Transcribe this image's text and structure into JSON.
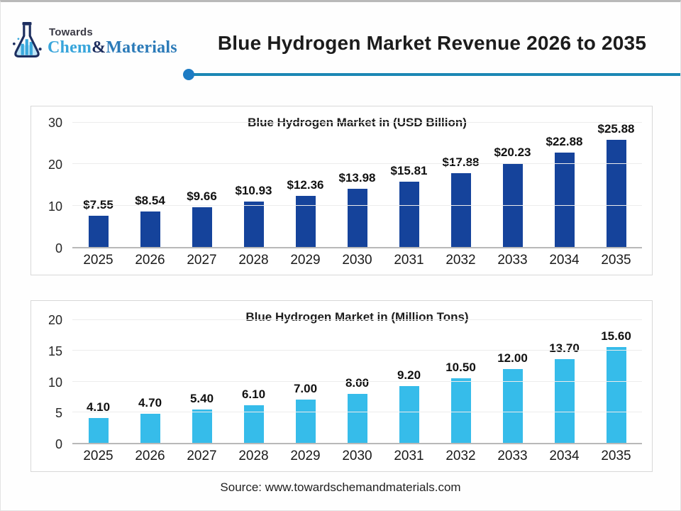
{
  "header": {
    "logo": {
      "icon": "flask-chart-icon",
      "brand_top": "Towards",
      "brand_chem": "Chem",
      "brand_amp": "&",
      "brand_materials": "Materials"
    },
    "title": "Blue Hydrogen Market Revenue 2026 to 2035"
  },
  "footer": {
    "source": "Source: www.towardschemandmaterials.com"
  },
  "colors": {
    "navy_bar": "#15439b",
    "cyan_bar": "#36bcea",
    "divider_line": "#1b87b4",
    "divider_dot": "#1d7cc4",
    "logo_chem": "#38a5db",
    "logo_materials": "#2b7ab8",
    "logo_navy": "#1d2e5f"
  },
  "chart_data": [
    {
      "type": "bar",
      "title": "Blue Hydrogen Market in (USD Billion)",
      "categories": [
        "2025",
        "2026",
        "2027",
        "2028",
        "2029",
        "2030",
        "2031",
        "2032",
        "2033",
        "2034",
        "2035"
      ],
      "values": [
        7.55,
        8.54,
        9.66,
        10.93,
        12.36,
        13.98,
        15.81,
        17.88,
        20.23,
        22.88,
        25.88
      ],
      "value_labels": [
        "$7.55",
        "$8.54",
        "$9.66",
        "$10.93",
        "$12.36",
        "$13.98",
        "$15.81",
        "$17.88",
        "$20.23",
        "$22.88",
        "$25.88"
      ],
      "bar_color": "#15439b",
      "xlabel": "",
      "ylabel": "",
      "ylim": [
        0,
        30
      ],
      "yticks": [
        0,
        10,
        20,
        30
      ],
      "grid": true,
      "legend": false
    },
    {
      "type": "bar",
      "title": "Blue Hydrogen Market in (Million Tons)",
      "categories": [
        "2025",
        "2026",
        "2027",
        "2028",
        "2029",
        "2030",
        "2031",
        "2032",
        "2033",
        "2034",
        "2035"
      ],
      "values": [
        4.1,
        4.7,
        5.4,
        6.1,
        7.0,
        8.0,
        9.2,
        10.5,
        12.0,
        13.7,
        15.6
      ],
      "value_labels": [
        "4.10",
        "4.70",
        "5.40",
        "6.10",
        "7.00",
        "8.00",
        "9.20",
        "10.50",
        "12.00",
        "13.70",
        "15.60"
      ],
      "bar_color": "#36bcea",
      "xlabel": "",
      "ylabel": "",
      "ylim": [
        0,
        20
      ],
      "yticks": [
        0,
        5,
        10,
        15,
        20
      ],
      "grid": true,
      "legend": false
    }
  ]
}
